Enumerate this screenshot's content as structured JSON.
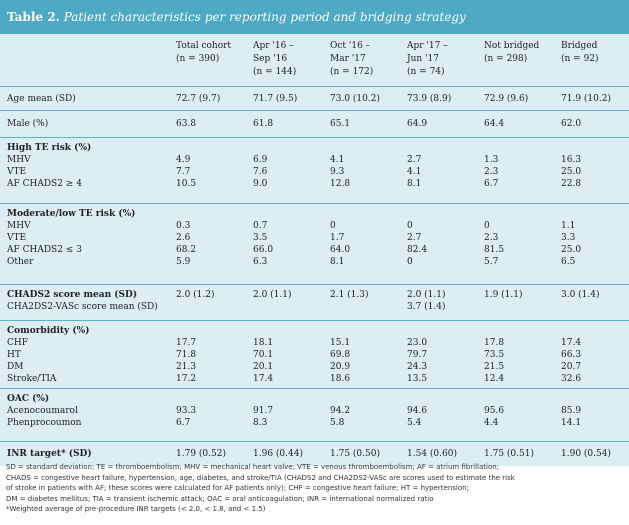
{
  "title": {
    "label": "Table 2.",
    "caption": "Patient characteristics per reporting period and bridging strategy"
  },
  "headers": [
    "",
    "Total cohort\n(n = 390)",
    "Apr '16 –\nSep '16\n(n = 144)",
    "Oct '16 –\nMar '17\n(n = 172)",
    "Apr '17 –\nJun '17\n(n = 74)",
    "Not bridged\n(n = 298)",
    "Bridged\n(n = 92)"
  ],
  "rows": [
    [
      "Age mean (SD)",
      "72.7 (9.7)",
      "71.7 (9.5)",
      "73.0 (10.2)",
      "73.9 (8.9)",
      "72.9 (9.6)",
      "71.9 (10.2)"
    ],
    [
      "Male (%)",
      "63.8",
      "61.8",
      "65.1",
      "64.9",
      "64.4",
      "62.0"
    ],
    [
      "High TE risk (%)\nMHV\nVTE\nAF CHADS2 ≥ 4",
      "\n4.9\n7.7\n10.5",
      "\n6.9\n7.6\n9.0",
      "\n4.1\n9.3\n12.8",
      "\n2.7\n4.1\n8.1",
      "\n1.3\n2.3\n6.7",
      "\n16.3\n25.0\n22.8"
    ],
    [
      "Moderate/low TE risk (%)\nMHV\nVTE\nAF CHADS2 ≤ 3\nOther",
      "\n0.3\n2.6\n68.2\n5.9",
      "\n0.7\n3.5\n66.0\n6.3",
      "\n0\n1.7\n64.0\n8.1",
      "\n0\n2.7\n82.4\n0",
      "\n0\n2.3\n81.5\n5.7",
      "\n1.1\n3.3\n25.0\n6.5"
    ],
    [
      "CHADS2 score mean (SD)\nCHA2DS2-VASc score mean (SD)",
      "2.0 (1.2)",
      "2.0 (1.1)",
      "2.1 (1.3)",
      "2.0 (1.1)\n3.7 (1.4)",
      "1.9 (1.1)",
      "3.0 (1.4)"
    ],
    [
      "Comorbidity (%)\nCHF\nHT\nDM\nStroke/TIA",
      "\n17.7\n71.8\n21.3\n17.2",
      "\n18.1\n70.1\n20.1\n17.4",
      "\n15.1\n69.8\n20.9\n18.6",
      "\n23.0\n79.7\n24.3\n13.5",
      "\n17.8\n73.5\n21.5\n12.4",
      "\n17.4\n66.3\n20.7\n32.6"
    ],
    [
      "OAC (%)\nAcenocoumarol\nPhenprocoumon",
      "\n93.3\n6.7",
      "\n91.7\n8.3",
      "\n94.2\n5.8",
      "\n94.6\n5.4",
      "\n95.6\n4.4",
      "\n85.9\n14.1"
    ],
    [
      "INR target* (SD)",
      "1.79 (0.52)",
      "1.96 (0.44)",
      "1.75 (0.50)",
      "1.54 (0.60)",
      "1.75 (0.51)",
      "1.90 (0.54)"
    ]
  ],
  "footnotes": [
    "SD = standard deviation; TE = thromboembolism; MHV = mechanical heart valve; VTE = venous thromboembolism; AF = atrium fibrillation;",
    "CHADS = congestive heart failure, hypertension, age, diabetes, and stroke/TIA (CHADS2 and CHA2DS2-VASc are scores used to estimate the risk",
    "of stroke in patients with AF; these scores were calculated for AF patients only); CHF = congestive heart failure; HT = hypertension;",
    "DM = diabetes mellitus; TIA = transient ischemic attack; OAC = oral anticoagulation; INR = international normalized ratio",
    "*Weighted average of pre-procedure INR targets (< 2.0, < 1.8, and < 1.5)"
  ]
}
